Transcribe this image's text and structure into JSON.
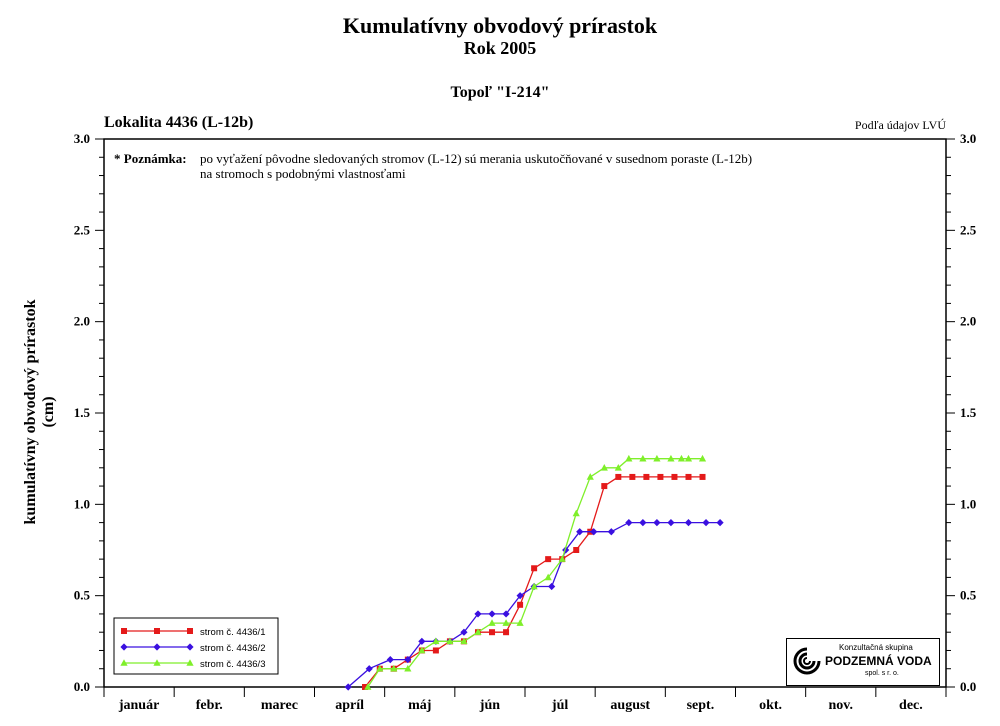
{
  "header": {
    "title": "Kumulatívny obvodový prírastok",
    "year": "Rok 2005",
    "tree": "Topoľ \"I-214\"",
    "locality": "Lokalita 4436 (L-12b)",
    "source": "Podľa údajov LVÚ"
  },
  "note": {
    "label": "* Poznámka:",
    "line1": "po vyťažení pôvodne sledovaných stromov (L-12) sú merania uskutočňované v susednom poraste (L-12b)",
    "line2": "na stromoch s podobnými vlastnosťami"
  },
  "logo": {
    "line1": "Konzultačná skupina",
    "line2": "PODZEMNÁ VODA",
    "line3": "spol. s r. o."
  },
  "chart_data": {
    "type": "line",
    "ylabel_line1": "kumulatívny obvodový prírastok",
    "ylabel_line2": "(cm)",
    "ylim": [
      0,
      3
    ],
    "yticks": [
      "0.0",
      "0.5",
      "1.0",
      "1.5",
      "2.0",
      "2.5",
      "3.0"
    ],
    "months": [
      "január",
      "febr.",
      "marec",
      "apríl",
      "máj",
      "jún",
      "júl",
      "august",
      "sept.",
      "okt.",
      "nov.",
      "dec."
    ],
    "x_unit": "month index (0 = start of január, 12 = end of dec.)",
    "grid": false,
    "legend_position": "bottom-left",
    "series": [
      {
        "name": "strom č. 4436/1",
        "color": "#e41a1a",
        "marker": "square",
        "points": [
          [
            3.72,
            0.0
          ],
          [
            3.93,
            0.1
          ],
          [
            4.13,
            0.1
          ],
          [
            4.33,
            0.15
          ],
          [
            4.53,
            0.2
          ],
          [
            4.73,
            0.2
          ],
          [
            4.93,
            0.25
          ],
          [
            5.13,
            0.25
          ],
          [
            5.33,
            0.3
          ],
          [
            5.53,
            0.3
          ],
          [
            5.73,
            0.3
          ],
          [
            5.93,
            0.45
          ],
          [
            6.13,
            0.65
          ],
          [
            6.33,
            0.7
          ],
          [
            6.53,
            0.7
          ],
          [
            6.73,
            0.75
          ],
          [
            6.93,
            0.85
          ],
          [
            7.13,
            1.1
          ],
          [
            7.33,
            1.15
          ],
          [
            7.53,
            1.15
          ],
          [
            7.73,
            1.15
          ],
          [
            7.93,
            1.15
          ],
          [
            8.13,
            1.15
          ],
          [
            8.33,
            1.15
          ],
          [
            8.53,
            1.15
          ]
        ]
      },
      {
        "name": "strom č. 4436/2",
        "color": "#3a10e0",
        "marker": "diamond",
        "points": [
          [
            3.48,
            0.0
          ],
          [
            3.78,
            0.1
          ],
          [
            4.08,
            0.15
          ],
          [
            4.33,
            0.15
          ],
          [
            4.53,
            0.25
          ],
          [
            4.73,
            0.25
          ],
          [
            4.93,
            0.25
          ],
          [
            5.13,
            0.3
          ],
          [
            5.33,
            0.4
          ],
          [
            5.53,
            0.4
          ],
          [
            5.73,
            0.4
          ],
          [
            5.93,
            0.5
          ],
          [
            6.13,
            0.55
          ],
          [
            6.38,
            0.55
          ],
          [
            6.58,
            0.75
          ],
          [
            6.78,
            0.85
          ],
          [
            6.98,
            0.85
          ],
          [
            7.23,
            0.85
          ],
          [
            7.48,
            0.9
          ],
          [
            7.68,
            0.9
          ],
          [
            7.88,
            0.9
          ],
          [
            8.08,
            0.9
          ],
          [
            8.33,
            0.9
          ],
          [
            8.58,
            0.9
          ],
          [
            8.78,
            0.9
          ]
        ]
      },
      {
        "name": "strom č. 4436/3",
        "color": "#7fef2a",
        "marker": "triangle",
        "points": [
          [
            3.76,
            0.0
          ],
          [
            3.93,
            0.1
          ],
          [
            4.13,
            0.1
          ],
          [
            4.33,
            0.1
          ],
          [
            4.53,
            0.2
          ],
          [
            4.73,
            0.25
          ],
          [
            4.93,
            0.25
          ],
          [
            5.13,
            0.25
          ],
          [
            5.33,
            0.3
          ],
          [
            5.53,
            0.35
          ],
          [
            5.73,
            0.35
          ],
          [
            5.93,
            0.35
          ],
          [
            6.13,
            0.55
          ],
          [
            6.33,
            0.6
          ],
          [
            6.53,
            0.7
          ],
          [
            6.73,
            0.95
          ],
          [
            6.93,
            1.15
          ],
          [
            7.13,
            1.2
          ],
          [
            7.33,
            1.2
          ],
          [
            7.48,
            1.25
          ],
          [
            7.68,
            1.25
          ],
          [
            7.88,
            1.25
          ],
          [
            8.08,
            1.25
          ],
          [
            8.23,
            1.25
          ],
          [
            8.33,
            1.25
          ],
          [
            8.53,
            1.25
          ]
        ]
      }
    ]
  }
}
